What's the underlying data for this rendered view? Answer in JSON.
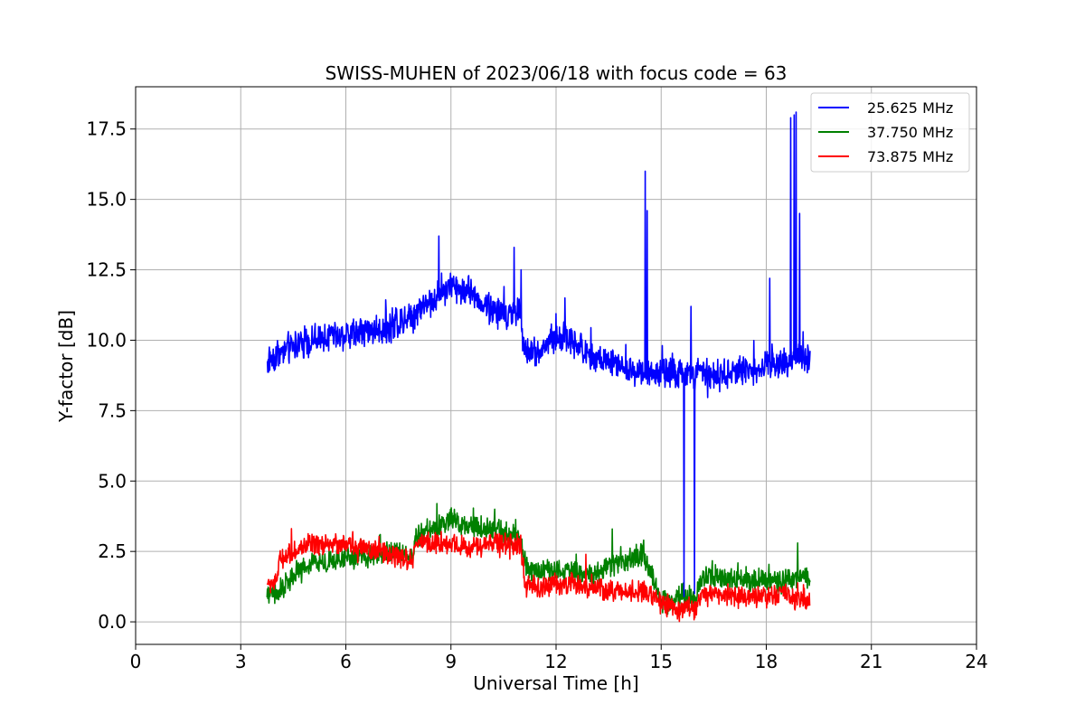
{
  "chart_data": {
    "type": "line",
    "title": "SWISS-MUHEN of 2023/06/18 with focus code = 63",
    "xlabel": "Universal Time [h]",
    "ylabel": "Y-factor [dB]",
    "xlim": [
      0,
      24
    ],
    "ylim": [
      -0.8,
      19.0
    ],
    "x_ticks": [
      0,
      3,
      6,
      9,
      12,
      15,
      18,
      21,
      24
    ],
    "y_ticks": [
      0.0,
      2.5,
      5.0,
      7.5,
      10.0,
      12.5,
      15.0,
      17.5
    ],
    "y_tick_labels": [
      "0.0",
      "2.5",
      "5.0",
      "7.5",
      "10.0",
      "12.5",
      "15.0",
      "17.5"
    ],
    "grid": true,
    "legend_position": "top-right",
    "series": [
      {
        "name": "25.625 MHz",
        "color": "#0000ff",
        "noise": 0.8,
        "x": [
          3.75,
          4.0,
          4.5,
          5.0,
          5.5,
          6.0,
          6.5,
          7.0,
          7.5,
          8.0,
          8.5,
          9.0,
          9.5,
          10.0,
          10.5,
          11.0,
          11.05,
          11.5,
          12.0,
          12.5,
          13.0,
          13.5,
          14.0,
          14.5,
          15.0,
          15.5,
          16.0,
          16.5,
          17.0,
          17.5,
          18.0,
          18.5,
          19.0,
          19.25
        ],
        "y": [
          9.2,
          9.5,
          9.8,
          10.0,
          10.1,
          10.2,
          10.3,
          10.4,
          10.6,
          11.0,
          11.5,
          11.9,
          11.8,
          11.2,
          10.9,
          11.0,
          9.7,
          9.6,
          10.1,
          10.0,
          9.4,
          9.2,
          9.0,
          8.9,
          8.8,
          8.8,
          8.8,
          8.7,
          8.9,
          8.9,
          9.1,
          9.2,
          9.5,
          9.3
        ],
        "spikes": [
          {
            "x": 8.65,
            "y": 13.7
          },
          {
            "x": 10.8,
            "y": 13.3
          },
          {
            "x": 11.0,
            "y": 12.5
          },
          {
            "x": 12.25,
            "y": 11.5
          },
          {
            "x": 14.55,
            "y": 16.0
          },
          {
            "x": 14.6,
            "y": 14.6
          },
          {
            "x": 15.65,
            "y": 0.9
          },
          {
            "x": 15.85,
            "y": 11.2
          },
          {
            "x": 15.95,
            "y": 1.0
          },
          {
            "x": 18.1,
            "y": 12.2
          },
          {
            "x": 18.7,
            "y": 17.9
          },
          {
            "x": 18.8,
            "y": 18.0
          },
          {
            "x": 18.85,
            "y": 18.1
          },
          {
            "x": 18.95,
            "y": 14.5
          },
          {
            "x": 19.05,
            "y": 10.3
          }
        ]
      },
      {
        "name": "37.750 MHz",
        "color": "#008000",
        "noise": 0.6,
        "x": [
          3.75,
          4.0,
          4.5,
          5.0,
          5.5,
          6.0,
          6.5,
          7.0,
          7.5,
          7.9,
          8.0,
          8.5,
          9.0,
          9.5,
          10.0,
          10.5,
          11.0,
          11.1,
          11.5,
          12.0,
          12.5,
          13.0,
          13.5,
          14.0,
          14.5,
          15.0,
          15.5,
          16.0,
          16.2,
          16.5,
          17.0,
          17.5,
          18.0,
          18.5,
          19.0,
          19.25
        ],
        "y": [
          1.0,
          1.0,
          1.6,
          2.0,
          2.1,
          2.3,
          2.3,
          2.4,
          2.5,
          2.3,
          3.0,
          3.3,
          3.6,
          3.4,
          3.3,
          3.2,
          2.9,
          2.0,
          1.8,
          1.9,
          1.8,
          1.6,
          2.0,
          2.2,
          2.4,
          0.7,
          0.8,
          0.9,
          1.6,
          1.6,
          1.5,
          1.5,
          1.5,
          1.4,
          1.6,
          1.5
        ],
        "spikes": [
          {
            "x": 8.6,
            "y": 4.2
          },
          {
            "x": 10.25,
            "y": 4.0
          },
          {
            "x": 13.6,
            "y": 3.3
          },
          {
            "x": 14.5,
            "y": 2.9
          },
          {
            "x": 18.9,
            "y": 2.8
          }
        ]
      },
      {
        "name": "73.875 MHz",
        "color": "#ff0000",
        "noise": 0.55,
        "x": [
          3.75,
          4.0,
          4.1,
          4.5,
          5.0,
          5.5,
          6.0,
          6.5,
          7.0,
          7.5,
          7.9,
          8.0,
          8.5,
          9.0,
          9.5,
          10.0,
          10.5,
          11.0,
          11.1,
          11.5,
          12.0,
          12.5,
          13.0,
          13.5,
          14.0,
          14.5,
          15.0,
          15.5,
          16.0,
          16.2,
          16.5,
          17.0,
          17.5,
          18.0,
          18.5,
          19.0,
          19.25
        ],
        "y": [
          1.4,
          1.3,
          2.2,
          2.5,
          2.7,
          2.8,
          2.7,
          2.6,
          2.5,
          2.3,
          2.2,
          2.8,
          2.8,
          2.8,
          2.6,
          2.8,
          2.8,
          2.7,
          1.3,
          1.2,
          1.3,
          1.4,
          1.2,
          1.1,
          1.1,
          1.1,
          0.7,
          0.4,
          0.5,
          1.0,
          1.0,
          0.9,
          0.9,
          0.9,
          1.0,
          0.8,
          0.8
        ],
        "spikes": [
          {
            "x": 6.2,
            "y": 3.2
          },
          {
            "x": 12.85,
            "y": 2.4
          }
        ]
      }
    ]
  }
}
